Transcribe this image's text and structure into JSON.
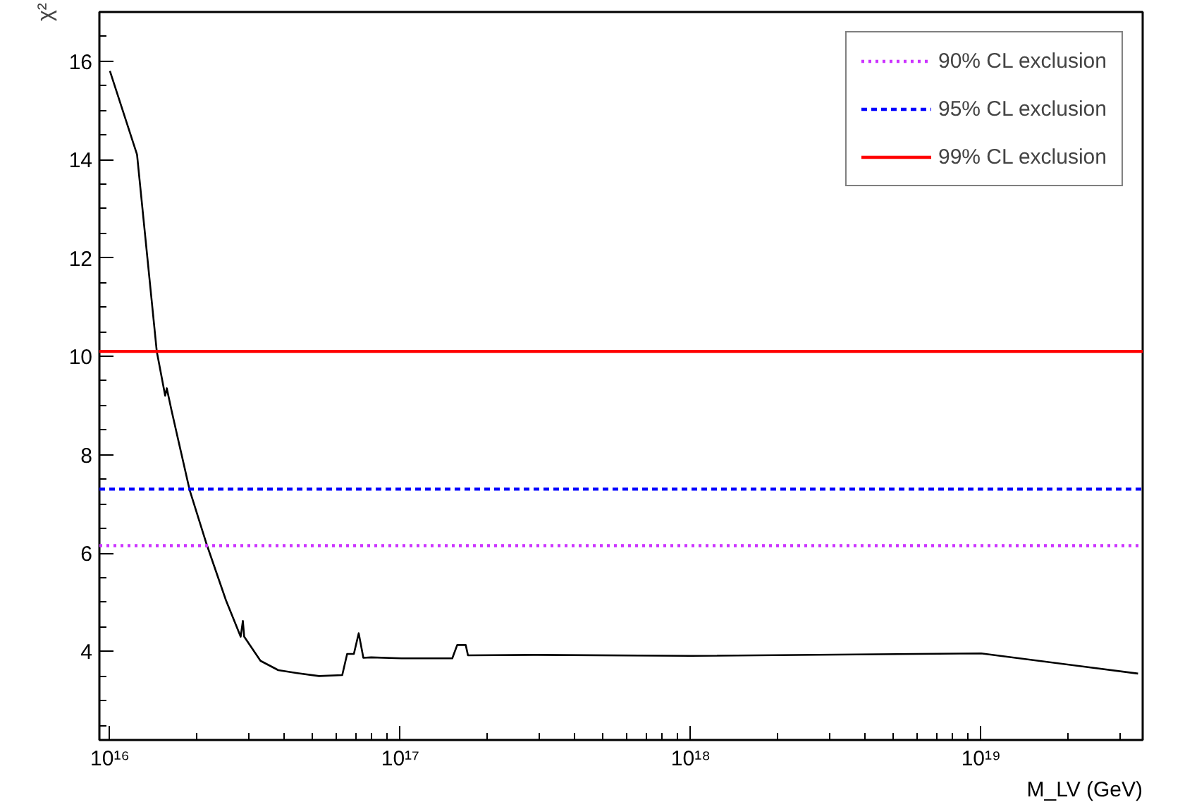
{
  "chart_data": {
    "type": "line",
    "xlabel": "M_LV (GeV)",
    "ylabel": "χ²",
    "log": "x",
    "xlim": [
      9200000000000000.0,
      3.6e+19
    ],
    "ylim": [
      2.2,
      17
    ],
    "xticks": [
      {
        "value": 1e+16,
        "label": "10¹⁶"
      },
      {
        "value": 1e+17,
        "label": "10¹⁷"
      },
      {
        "value": 1e+18,
        "label": "10¹⁸"
      },
      {
        "value": 1e+19,
        "label": "10¹⁹"
      }
    ],
    "yticks": [
      4,
      6,
      8,
      10,
      12,
      14,
      16
    ],
    "grid": false,
    "legend": "top right",
    "series": [
      {
        "color": "#000000",
        "x": [
          1e+16,
          1.24e+16,
          1.45e+16,
          1.55e+16,
          1.57e+16,
          1.63e+16,
          1.88e+16,
          2.15e+16,
          2.51e+16,
          2.82e+16,
          2.87e+16,
          2.9e+16,
          3.3e+16,
          3.8e+16,
          4.42e+16,
          5.25e+16,
          6.31e+16,
          6.56e+16,
          6.92e+16,
          7.19e+16,
          7.46e+16,
          7.94e+16,
          1.01e+17,
          1.51e+17,
          1.57e+17,
          1.68e+17,
          1.71e+17,
          2.88e+17,
          1e+18,
          1e+19,
          3.47e+19
        ],
        "values": [
          15.8,
          14.1,
          10.1,
          9.2,
          9.35,
          8.9,
          7.29,
          6.19,
          5.04,
          4.3,
          4.62,
          4.3,
          3.81,
          3.62,
          3.56,
          3.5,
          3.52,
          3.95,
          3.95,
          4.37,
          3.87,
          3.88,
          3.86,
          3.86,
          4.13,
          4.13,
          3.92,
          3.93,
          3.91,
          3.96,
          3.55
        ]
      }
    ],
    "ref_lines": [
      {
        "axis": "y",
        "value": 6.15,
        "label": "90% CL exclusion",
        "color": "#cc33ff",
        "line_style": "dotted"
      },
      {
        "axis": "y",
        "value": 7.3,
        "label": "95% CL exclusion",
        "color": "#0000ff",
        "line_style": "dashed"
      },
      {
        "axis": "y",
        "value": 10.1,
        "label": "99% CL exclusion",
        "color": "#ff0000",
        "line_style": "solid"
      }
    ]
  }
}
